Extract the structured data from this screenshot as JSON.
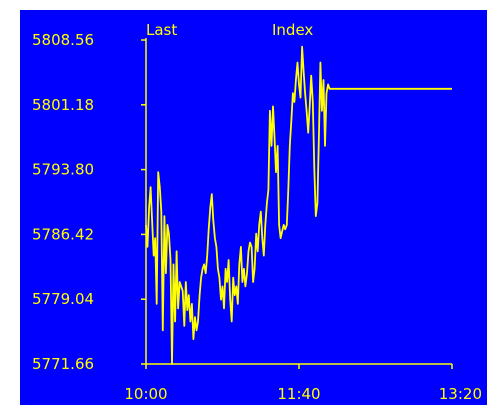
{
  "chart_data": {
    "type": "line",
    "title_left": "Last",
    "title_center": "Index",
    "xlabel": "",
    "ylabel": "",
    "x_tick_labels": [
      "10:00",
      "11:40",
      "13:20"
    ],
    "x_range_minutes": [
      600,
      800
    ],
    "y_tick_labels": [
      "5808.56",
      "5801.18",
      "5793.80",
      "5786.42",
      "5779.04",
      "5771.66"
    ],
    "y_ticks": [
      5808.56,
      5801.18,
      5793.8,
      5786.42,
      5779.04,
      5771.66
    ],
    "ylim": [
      5771.66,
      5808.56
    ],
    "grid": false,
    "colors": {
      "background": "#0000ff",
      "line": "#ffff00",
      "axis": "#ffff00",
      "text": "#ffff00"
    },
    "series": [
      {
        "x": [
          600,
          601,
          602,
          603,
          604,
          605,
          606,
          607,
          608,
          609,
          610,
          611,
          612,
          613,
          614,
          615,
          616,
          617,
          618,
          619,
          620,
          621,
          622,
          623,
          624,
          625,
          626,
          627,
          628,
          629,
          630,
          631,
          632,
          633,
          634,
          635,
          636,
          637,
          638,
          639,
          640,
          641,
          642,
          643,
          644,
          645,
          646,
          647,
          648,
          649,
          650,
          651,
          652,
          653,
          654,
          655,
          656,
          657,
          658,
          659,
          660,
          661,
          662,
          663,
          664,
          665,
          666,
          667,
          668,
          669,
          670,
          671,
          672,
          673,
          674,
          675,
          676,
          677,
          678,
          679,
          680,
          681,
          682,
          683,
          684,
          685,
          686,
          687,
          688,
          689,
          690,
          691,
          692,
          693,
          694,
          695,
          696,
          697,
          698,
          699,
          700,
          701,
          702,
          703,
          704,
          705,
          706,
          707,
          708,
          709,
          710,
          711,
          712,
          713,
          714,
          715,
          716,
          717,
          718,
          719,
          720,
          800
        ],
        "values": [
          5787.5,
          5785.0,
          5789.5,
          5791.8,
          5788.0,
          5784.0,
          5786.0,
          5778.5,
          5793.5,
          5791.8,
          5789.0,
          5775.5,
          5788.5,
          5782.0,
          5787.5,
          5786.5,
          5783.5,
          5771.66,
          5783.0,
          5776.5,
          5784.5,
          5778.0,
          5781.0,
          5780.5,
          5780.0,
          5776.0,
          5781.0,
          5777.8,
          5779.5,
          5776.5,
          5778.5,
          5774.5,
          5777.0,
          5775.5,
          5776.5,
          5779.5,
          5781.5,
          5782.5,
          5783.0,
          5782.0,
          5784.0,
          5787.0,
          5789.5,
          5791.0,
          5788.0,
          5786.0,
          5785.0,
          5782.5,
          5781.5,
          5779.0,
          5780.5,
          5778.0,
          5782.5,
          5781.0,
          5783.5,
          5779.0,
          5776.5,
          5781.5,
          5779.5,
          5780.5,
          5778.5,
          5783.0,
          5785.0,
          5781.0,
          5782.5,
          5780.5,
          5782.0,
          5784.5,
          5785.5,
          5785.0,
          5781.0,
          5782.5,
          5786.5,
          5784.5,
          5787.5,
          5789.0,
          5786.0,
          5784.0,
          5787.5,
          5790.0,
          5791.5,
          5800.5,
          5796.5,
          5801.0,
          5797.5,
          5793.5,
          5796.5,
          5787.5,
          5786.0,
          5786.8,
          5787.5,
          5787.0,
          5787.5,
          5791.5,
          5796.5,
          5799.5,
          5802.5,
          5801.5,
          5804.0,
          5806.0,
          5803.5,
          5802.0,
          5807.8,
          5805.0,
          5802.5,
          5800.5,
          5798.0,
          5801.0,
          5804.5,
          5801.5,
          5794.0,
          5788.5,
          5790.0,
          5797.5,
          5806.0,
          5800.5,
          5804.0,
          5796.5,
          5802.5,
          5803.5,
          5803.0,
          5803.0
        ]
      }
    ]
  }
}
